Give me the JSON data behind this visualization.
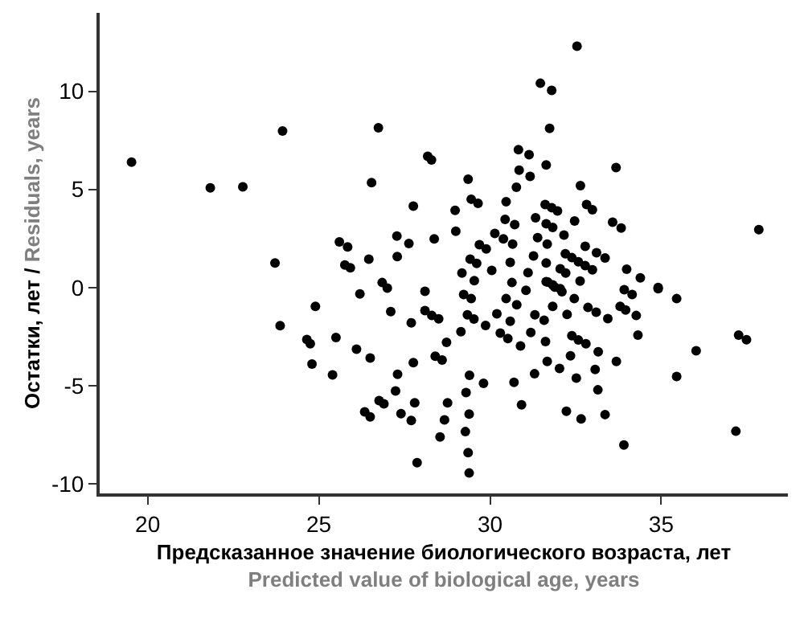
{
  "chart_data": {
    "type": "scatter",
    "xlabel": "Предсказанное значение биологического возраста, лет\nPredicted value of biological age, years",
    "ylabel": "Остатки, лет / Residuals, years",
    "xlim": [
      18.6,
      38.7
    ],
    "xticks": [
      20,
      25,
      30,
      35
    ],
    "ylim": [
      -10.5,
      14
    ],
    "yticks": [
      -10,
      -5,
      0,
      5,
      10
    ],
    "grid": false,
    "marker": "circle",
    "series": [
      {
        "color": "#000000",
        "x": [
          19.53,
          21.83,
          22.78,
          23.94,
          23.72,
          23.87,
          24.9,
          24.65,
          24.75,
          24.8,
          25.5,
          25.4,
          26.2,
          26.1,
          26.5,
          26.85,
          27.0,
          27.1,
          28.1,
          28.1,
          28.3,
          28.5,
          27.7,
          28.73,
          28.4,
          28.6,
          27.76,
          27.3,
          27.24,
          26.76,
          26.9,
          26.34,
          26.5,
          27.4,
          27.7,
          27.8,
          28.76,
          28.67,
          28.54,
          27.87,
          26.74,
          26.54,
          28.18,
          28.29,
          27.76,
          25.6,
          25.84,
          27.28,
          27.63,
          28.37,
          25.76,
          25.92,
          26.46,
          27.29,
          32.54,
          31.47,
          31.8,
          31.74,
          30.83,
          31.14,
          31.64,
          33.68,
          30.85,
          31.17,
          29.36,
          30.77,
          32.64,
          29.45,
          29.65,
          30.47,
          28.98,
          31.61,
          31.8,
          31.97,
          32.82,
          32.99,
          30.44,
          30.72,
          31.33,
          31.64,
          31.83,
          32.47,
          33.58,
          33.83,
          37.85,
          29.0,
          30.14,
          30.39,
          30.66,
          31.39,
          31.67,
          32.16,
          29.69,
          29.89,
          32.78,
          32.2,
          32.39,
          32.58,
          32.78,
          32.99,
          33.11,
          33.36,
          29.42,
          29.61,
          30.59,
          31.27,
          31.64,
          33.99,
          34.39,
          34.91,
          29.18,
          29.54,
          30.05,
          30.64,
          31.11,
          31.64,
          31.83,
          32.05,
          32.05,
          32.21,
          32.63,
          31.69,
          31.89,
          32.1,
          34.91,
          35.45,
          29.23,
          29.45,
          30.47,
          30.78,
          31.05,
          32.46,
          33.92,
          34.15,
          29.34,
          29.53,
          30.2,
          30.59,
          31.31,
          31.58,
          31.83,
          32.25,
          32.86,
          33.1,
          33.44,
          33.8,
          33.96,
          34.27,
          29.15,
          29.87,
          30.3,
          30.52,
          30.89,
          31.19,
          31.62,
          32.39,
          32.58,
          32.8,
          33.16,
          34.32,
          36.02,
          37.26,
          37.49,
          29.4,
          29.81,
          30.7,
          31.3,
          31.67,
          32.03,
          32.35,
          32.52,
          33.07,
          33.15,
          33.69,
          35.45,
          29.3,
          29.39,
          30.92,
          32.23,
          32.66,
          33.36,
          29.28,
          29.36,
          29.39,
          33.91,
          37.18
        ],
        "values": [
          6.39,
          5.08,
          5.13,
          7.98,
          1.25,
          -1.95,
          -0.96,
          -2.65,
          -2.87,
          -3.9,
          -2.55,
          -4.46,
          -0.33,
          -3.15,
          -3.6,
          0.25,
          -0.03,
          -1.23,
          -0.2,
          -1.18,
          -1.43,
          -1.6,
          -1.8,
          -2.8,
          -3.5,
          -3.7,
          -3.83,
          -4.43,
          -5.28,
          -5.77,
          -5.93,
          -6.34,
          -6.6,
          -6.43,
          -6.78,
          -5.88,
          -5.88,
          -6.75,
          -7.62,
          -8.93,
          8.14,
          5.35,
          6.69,
          6.5,
          4.15,
          2.32,
          2.07,
          2.62,
          2.24,
          2.48,
          1.15,
          1.0,
          1.44,
          1.58,
          12.3,
          10.41,
          10.05,
          8.11,
          7.02,
          6.77,
          6.25,
          6.11,
          5.98,
          5.66,
          5.52,
          5.11,
          5.19,
          4.5,
          4.29,
          4.37,
          3.93,
          4.23,
          4.07,
          3.9,
          4.23,
          3.96,
          3.47,
          3.2,
          3.55,
          3.25,
          3.06,
          3.39,
          3.33,
          3.03,
          2.95,
          2.87,
          2.75,
          2.48,
          2.21,
          2.54,
          2.21,
          2.67,
          2.18,
          1.97,
          2.1,
          1.72,
          1.52,
          1.31,
          1.11,
          0.9,
          1.77,
          1.5,
          1.44,
          1.23,
          1.28,
          1.61,
          1.25,
          0.93,
          0.49,
          0.0,
          0.74,
          0.35,
          0.87,
          0.25,
          0.76,
          0.3,
          0.13,
          -0.06,
          0.95,
          0.74,
          0.33,
          0.27,
          0.02,
          -0.22,
          -0.06,
          -0.57,
          -0.36,
          -0.57,
          -0.57,
          -0.88,
          -0.14,
          -0.57,
          -0.11,
          -0.36,
          -1.39,
          -1.61,
          -1.34,
          -1.72,
          -1.39,
          -1.67,
          -0.96,
          -1.37,
          -1.02,
          -1.26,
          -1.59,
          -0.96,
          -1.15,
          -1.43,
          -2.25,
          -1.94,
          -2.33,
          -2.6,
          -2.98,
          -2.3,
          -2.76,
          -2.46,
          -2.68,
          -2.87,
          -3.28,
          -2.43,
          -3.23,
          -2.43,
          -2.66,
          -4.48,
          -4.89,
          -4.84,
          -4.4,
          -3.77,
          -4.13,
          -3.48,
          -4.62,
          -4.18,
          -5.22,
          -3.77,
          -4.54,
          -5.36,
          -6.45,
          -5.98,
          -6.31,
          -6.7,
          -6.48,
          -7.35,
          -8.42,
          -9.46,
          -8.03,
          -7.33
        ]
      }
    ]
  }
}
